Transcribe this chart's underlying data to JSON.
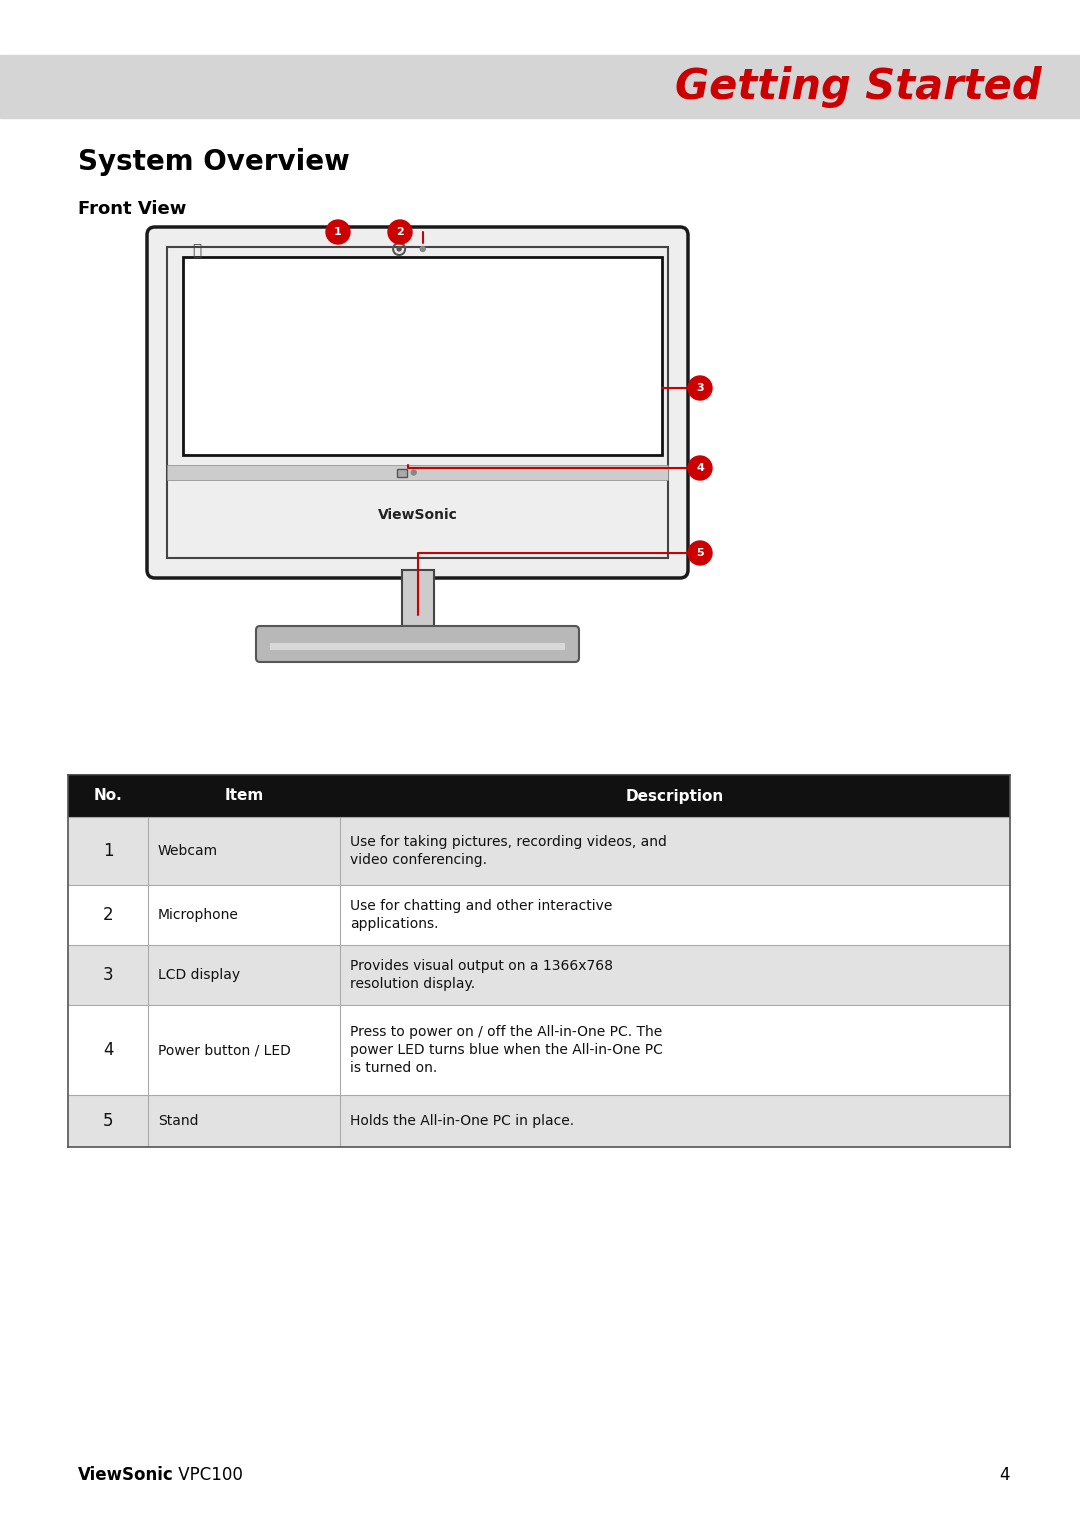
{
  "page_bg": "#ffffff",
  "header_bar_color": "#d5d5d5",
  "header_text": "Getting Started",
  "header_text_color": "#cc0000",
  "header_font_size": 30,
  "section_title": "System Overview",
  "section_font_size": 20,
  "subsection_title": "Front View",
  "subsection_font_size": 13,
  "footer_brand": "ViewSonic",
  "footer_model": " VPC100",
  "footer_page": "4",
  "table_header_color": "#111111",
  "odd_row_color": "#e2e2e2",
  "even_row_color": "#ffffff",
  "callout_color": "#cc0000",
  "table_rows": [
    {
      "no": "1",
      "item": "Webcam",
      "desc": "Use for taking pictures, recording videos, and\nvideo conferencing."
    },
    {
      "no": "2",
      "item": "Microphone",
      "desc": "Use for chatting and other interactive\napplications."
    },
    {
      "no": "3",
      "item": "LCD display",
      "desc": "Provides visual output on a 1366x768\nresolution display."
    },
    {
      "no": "4",
      "item": "Power button / LED",
      "desc": "Press to power on / off the All-in-One PC. The\npower LED turns blue when the All-in-One PC\nis turned on."
    },
    {
      "no": "5",
      "item": "Stand",
      "desc": "Holds the All-in-One PC in place."
    }
  ]
}
